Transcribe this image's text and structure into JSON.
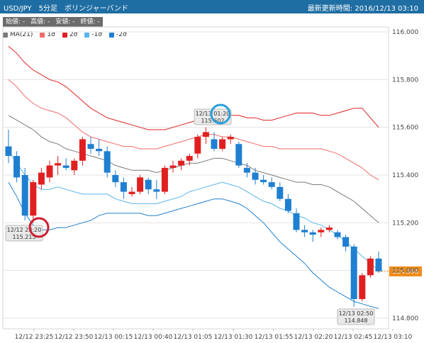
{
  "header": {
    "title": "USD/JPY　5分足　ボリンジャーバンド",
    "updated": "最新更新時間:  2016/12/13 03:10",
    "background": "#1f6ea3"
  },
  "ohlc_bar": {
    "open": "始値: -",
    "high": "高値: -",
    "low": "安値: -",
    "close": "終値: -"
  },
  "legend": [
    {
      "label": "MA(21)",
      "color": "#7a7a7a"
    },
    {
      "label": "1σ",
      "color": "#f06a6a"
    },
    {
      "label": "2σ",
      "color": "#e02020"
    },
    {
      "label": "-1σ",
      "color": "#5ab4ea"
    },
    {
      "label": "-2σ",
      "color": "#1f7fd1"
    }
  ],
  "price_tag": {
    "text": "114.996",
    "color": "#f08c18"
  },
  "annotations": [
    {
      "time": "12/12 23:20",
      "price": "115.215",
      "kind": "low"
    },
    {
      "time": "12/13 01:20",
      "price": "115.602",
      "kind": "high"
    },
    {
      "time": "12/13 02:50",
      "price": "114.848",
      "kind": "low"
    }
  ],
  "chart_data": {
    "type": "candlestick",
    "instrument": "USD/JPY",
    "interval": "5分足",
    "indicator": "ボリンジャーバンド",
    "y_ticks": [
      "114.800",
      "115.000",
      "115.200",
      "115.400",
      "115.600",
      "115.800",
      "116.000"
    ],
    "ylim": [
      114.78,
      116.04
    ],
    "x_ticks": [
      "12/12 23:25",
      "12/12 23:50",
      "12/13 00:15",
      "12/13 00:40",
      "12/13 01:05",
      "12/13 01:30",
      "12/13 01:55",
      "12/13 02:20",
      "12/13 02:45",
      "12/13 03:10"
    ],
    "up_color": "#e02020",
    "down_color": "#1f7fd1",
    "candles": [
      {
        "o": 115.52,
        "h": 115.59,
        "l": 115.45,
        "c": 115.48
      },
      {
        "o": 115.48,
        "h": 115.5,
        "l": 115.37,
        "c": 115.39
      },
      {
        "o": 115.4,
        "h": 115.43,
        "l": 115.21,
        "c": 115.23
      },
      {
        "o": 115.23,
        "h": 115.38,
        "l": 115.2,
        "c": 115.37
      },
      {
        "o": 115.36,
        "h": 115.43,
        "l": 115.34,
        "c": 115.41
      },
      {
        "o": 115.39,
        "h": 115.46,
        "l": 115.37,
        "c": 115.44
      },
      {
        "o": 115.44,
        "h": 115.48,
        "l": 115.4,
        "c": 115.45
      },
      {
        "o": 115.44,
        "h": 115.47,
        "l": 115.42,
        "c": 115.43
      },
      {
        "o": 115.42,
        "h": 115.47,
        "l": 115.4,
        "c": 115.46
      },
      {
        "o": 115.46,
        "h": 115.56,
        "l": 115.44,
        "c": 115.55
      },
      {
        "o": 115.53,
        "h": 115.56,
        "l": 115.49,
        "c": 115.51
      },
      {
        "o": 115.51,
        "h": 115.55,
        "l": 115.48,
        "c": 115.5
      },
      {
        "o": 115.5,
        "h": 115.52,
        "l": 115.39,
        "c": 115.41
      },
      {
        "o": 115.4,
        "h": 115.42,
        "l": 115.35,
        "c": 115.37
      },
      {
        "o": 115.37,
        "h": 115.39,
        "l": 115.3,
        "c": 115.33
      },
      {
        "o": 115.32,
        "h": 115.35,
        "l": 115.31,
        "c": 115.33
      },
      {
        "o": 115.33,
        "h": 115.4,
        "l": 115.32,
        "c": 115.39
      },
      {
        "o": 115.38,
        "h": 115.39,
        "l": 115.32,
        "c": 115.34
      },
      {
        "o": 115.34,
        "h": 115.38,
        "l": 115.3,
        "c": 115.33
      },
      {
        "o": 115.33,
        "h": 115.44,
        "l": 115.32,
        "c": 115.43
      },
      {
        "o": 115.43,
        "h": 115.46,
        "l": 115.41,
        "c": 115.44
      },
      {
        "o": 115.44,
        "h": 115.47,
        "l": 115.42,
        "c": 115.46
      },
      {
        "o": 115.46,
        "h": 115.49,
        "l": 115.44,
        "c": 115.48
      },
      {
        "o": 115.49,
        "h": 115.57,
        "l": 115.47,
        "c": 115.56
      },
      {
        "o": 115.56,
        "h": 115.6,
        "l": 115.53,
        "c": 115.58
      },
      {
        "o": 115.55,
        "h": 115.58,
        "l": 115.5,
        "c": 115.51
      },
      {
        "o": 115.51,
        "h": 115.56,
        "l": 115.5,
        "c": 115.55
      },
      {
        "o": 115.55,
        "h": 115.57,
        "l": 115.53,
        "c": 115.56
      },
      {
        "o": 115.53,
        "h": 115.54,
        "l": 115.43,
        "c": 115.44
      },
      {
        "o": 115.43,
        "h": 115.45,
        "l": 115.39,
        "c": 115.41
      },
      {
        "o": 115.41,
        "h": 115.43,
        "l": 115.36,
        "c": 115.38
      },
      {
        "o": 115.38,
        "h": 115.4,
        "l": 115.36,
        "c": 115.37
      },
      {
        "o": 115.37,
        "h": 115.39,
        "l": 115.34,
        "c": 115.35
      },
      {
        "o": 115.35,
        "h": 115.37,
        "l": 115.29,
        "c": 115.3
      },
      {
        "o": 115.3,
        "h": 115.32,
        "l": 115.24,
        "c": 115.25
      },
      {
        "o": 115.24,
        "h": 115.26,
        "l": 115.16,
        "c": 115.17
      },
      {
        "o": 115.17,
        "h": 115.19,
        "l": 115.14,
        "c": 115.16
      },
      {
        "o": 115.16,
        "h": 115.17,
        "l": 115.12,
        "c": 115.15
      },
      {
        "o": 115.16,
        "h": 115.18,
        "l": 115.14,
        "c": 115.17
      },
      {
        "o": 115.17,
        "h": 115.19,
        "l": 115.16,
        "c": 115.18
      },
      {
        "o": 115.16,
        "h": 115.17,
        "l": 115.13,
        "c": 115.14
      },
      {
        "o": 115.14,
        "h": 115.15,
        "l": 115.08,
        "c": 115.1
      },
      {
        "o": 115.1,
        "h": 115.11,
        "l": 114.848,
        "c": 114.88
      },
      {
        "o": 114.88,
        "h": 114.99,
        "l": 114.87,
        "c": 114.98
      },
      {
        "o": 114.98,
        "h": 115.06,
        "l": 114.97,
        "c": 115.05
      },
      {
        "o": 115.05,
        "h": 115.08,
        "l": 114.99,
        "c": 114.996
      }
    ],
    "bands": {
      "MA(21)": [
        115.65,
        115.63,
        115.61,
        115.59,
        115.56,
        115.54,
        115.53,
        115.51,
        115.5,
        115.49,
        115.48,
        115.47,
        115.46,
        115.44,
        115.43,
        115.42,
        115.42,
        115.42,
        115.41,
        115.42,
        115.43,
        115.44,
        115.45,
        115.45,
        115.46,
        115.47,
        115.47,
        115.46,
        115.45,
        115.44,
        115.42,
        115.41,
        115.4,
        115.39,
        115.38,
        115.37,
        115.37,
        115.36,
        115.36,
        115.35,
        115.33,
        115.31,
        115.29,
        115.26,
        115.23,
        115.2
      ],
      "1σ": [
        115.8,
        115.77,
        115.73,
        115.7,
        115.68,
        115.67,
        115.66,
        115.64,
        115.61,
        115.58,
        115.56,
        115.55,
        115.54,
        115.53,
        115.52,
        115.52,
        115.51,
        115.51,
        115.51,
        115.52,
        115.53,
        115.54,
        115.55,
        115.56,
        115.57,
        115.57,
        115.56,
        115.56,
        115.55,
        115.54,
        115.53,
        115.52,
        115.52,
        115.51,
        115.51,
        115.51,
        115.51,
        115.51,
        115.51,
        115.5,
        115.49,
        115.47,
        115.45,
        115.43,
        115.4,
        115.38
      ],
      "2σ": [
        115.94,
        115.91,
        115.87,
        115.84,
        115.82,
        115.8,
        115.79,
        115.77,
        115.74,
        115.71,
        115.68,
        115.66,
        115.64,
        115.63,
        115.62,
        115.61,
        115.6,
        115.59,
        115.59,
        115.59,
        115.6,
        115.61,
        115.62,
        115.63,
        115.64,
        115.65,
        115.65,
        115.65,
        115.65,
        115.64,
        115.64,
        115.63,
        115.63,
        115.64,
        115.65,
        115.66,
        115.66,
        115.66,
        115.65,
        115.65,
        115.66,
        115.67,
        115.68,
        115.68,
        115.64,
        115.6
      ],
      "-1σ": [
        115.5,
        115.45,
        115.4,
        115.36,
        115.34,
        115.34,
        115.35,
        115.34,
        115.33,
        115.32,
        115.32,
        115.32,
        115.32,
        115.3,
        115.29,
        115.28,
        115.28,
        115.28,
        115.28,
        115.29,
        115.3,
        115.31,
        115.33,
        115.34,
        115.35,
        115.36,
        115.37,
        115.36,
        115.35,
        115.33,
        115.31,
        115.29,
        115.28,
        115.26,
        115.25,
        115.23,
        115.22,
        115.2,
        115.19,
        115.17,
        115.15,
        115.12,
        115.09,
        115.06,
        115.03,
        115.0
      ],
      "-2σ": [
        115.37,
        115.31,
        115.24,
        115.19,
        115.17,
        115.17,
        115.18,
        115.18,
        115.19,
        115.2,
        115.21,
        115.23,
        115.24,
        115.24,
        115.24,
        115.24,
        115.24,
        115.23,
        115.23,
        115.24,
        115.25,
        115.26,
        115.27,
        115.28,
        115.29,
        115.3,
        115.3,
        115.29,
        115.28,
        115.26,
        115.23,
        115.2,
        115.16,
        115.12,
        115.09,
        115.06,
        115.03,
        114.99,
        114.96,
        114.93,
        114.91,
        114.89,
        114.87,
        114.86,
        114.85,
        114.84
      ]
    }
  }
}
